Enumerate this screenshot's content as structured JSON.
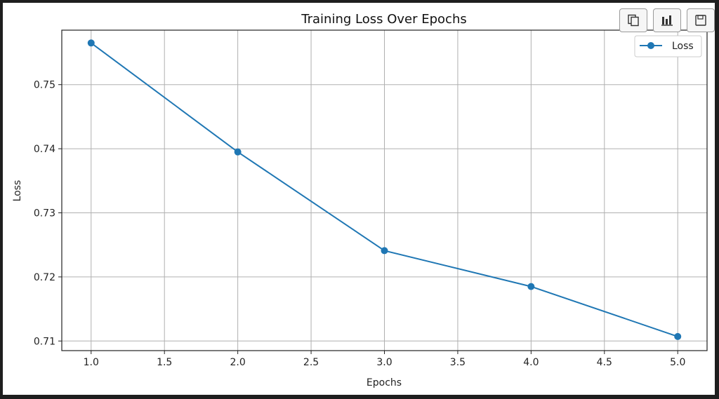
{
  "toolbar": {
    "buttons": [
      {
        "icon": "copy-icon"
      },
      {
        "icon": "bar-chart-icon"
      },
      {
        "icon": "save-icon"
      }
    ]
  },
  "chart_data": {
    "type": "line",
    "title": "Training Loss Over Epochs",
    "xlabel": "Epochs",
    "ylabel": "Loss",
    "x": [
      1.0,
      2.0,
      3.0,
      4.0,
      5.0
    ],
    "series": [
      {
        "name": "Loss",
        "values": [
          0.7565,
          0.7395,
          0.7241,
          0.7185,
          0.7107
        ],
        "color": "#1f77b4",
        "marker": "circle"
      }
    ],
    "xlim": [
      0.8,
      5.2
    ],
    "ylim": [
      0.7085,
      0.7585
    ],
    "xticks": [
      "1.0",
      "1.5",
      "2.0",
      "2.5",
      "3.0",
      "3.5",
      "4.0",
      "4.5",
      "5.0"
    ],
    "yticks": [
      "0.71",
      "0.72",
      "0.73",
      "0.74",
      "0.75"
    ],
    "grid": true,
    "legend_position": "top-right"
  }
}
